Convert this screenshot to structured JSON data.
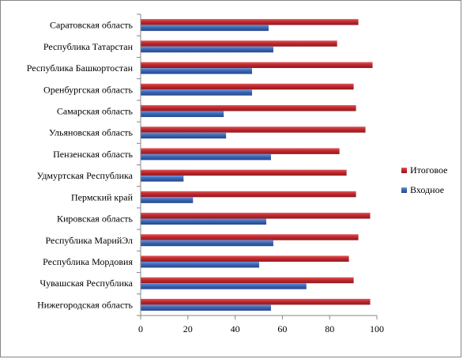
{
  "chart_data": {
    "type": "bar",
    "orientation": "horizontal",
    "categories": [
      "Саратовская область",
      "Республика Татарстан",
      "Республика Башкортостан",
      "Оренбургская область",
      "Самарская область",
      "Ульяновская область",
      "Пензенская область",
      "Удмуртская Республика",
      "Пермский край",
      "Кировская область",
      "Республика МарийЭл",
      "Республика Мордовия",
      "Чувашская Республика",
      "Нижегородская область"
    ],
    "series": [
      {
        "name": "Итоговое",
        "color": "#C0272D",
        "values": [
          92,
          83,
          98,
          90,
          91,
          95,
          84,
          87,
          91,
          97,
          92,
          88,
          90,
          97
        ]
      },
      {
        "name": "Входное",
        "color": "#3A66B5",
        "values": [
          54,
          56,
          47,
          47,
          35,
          36,
          55,
          18,
          22,
          53,
          56,
          50,
          70,
          55
        ]
      }
    ],
    "xlim": [
      0,
      100
    ],
    "xticks": [
      0,
      20,
      40,
      60,
      80,
      100
    ],
    "grid": false,
    "legend_position": "right"
  }
}
